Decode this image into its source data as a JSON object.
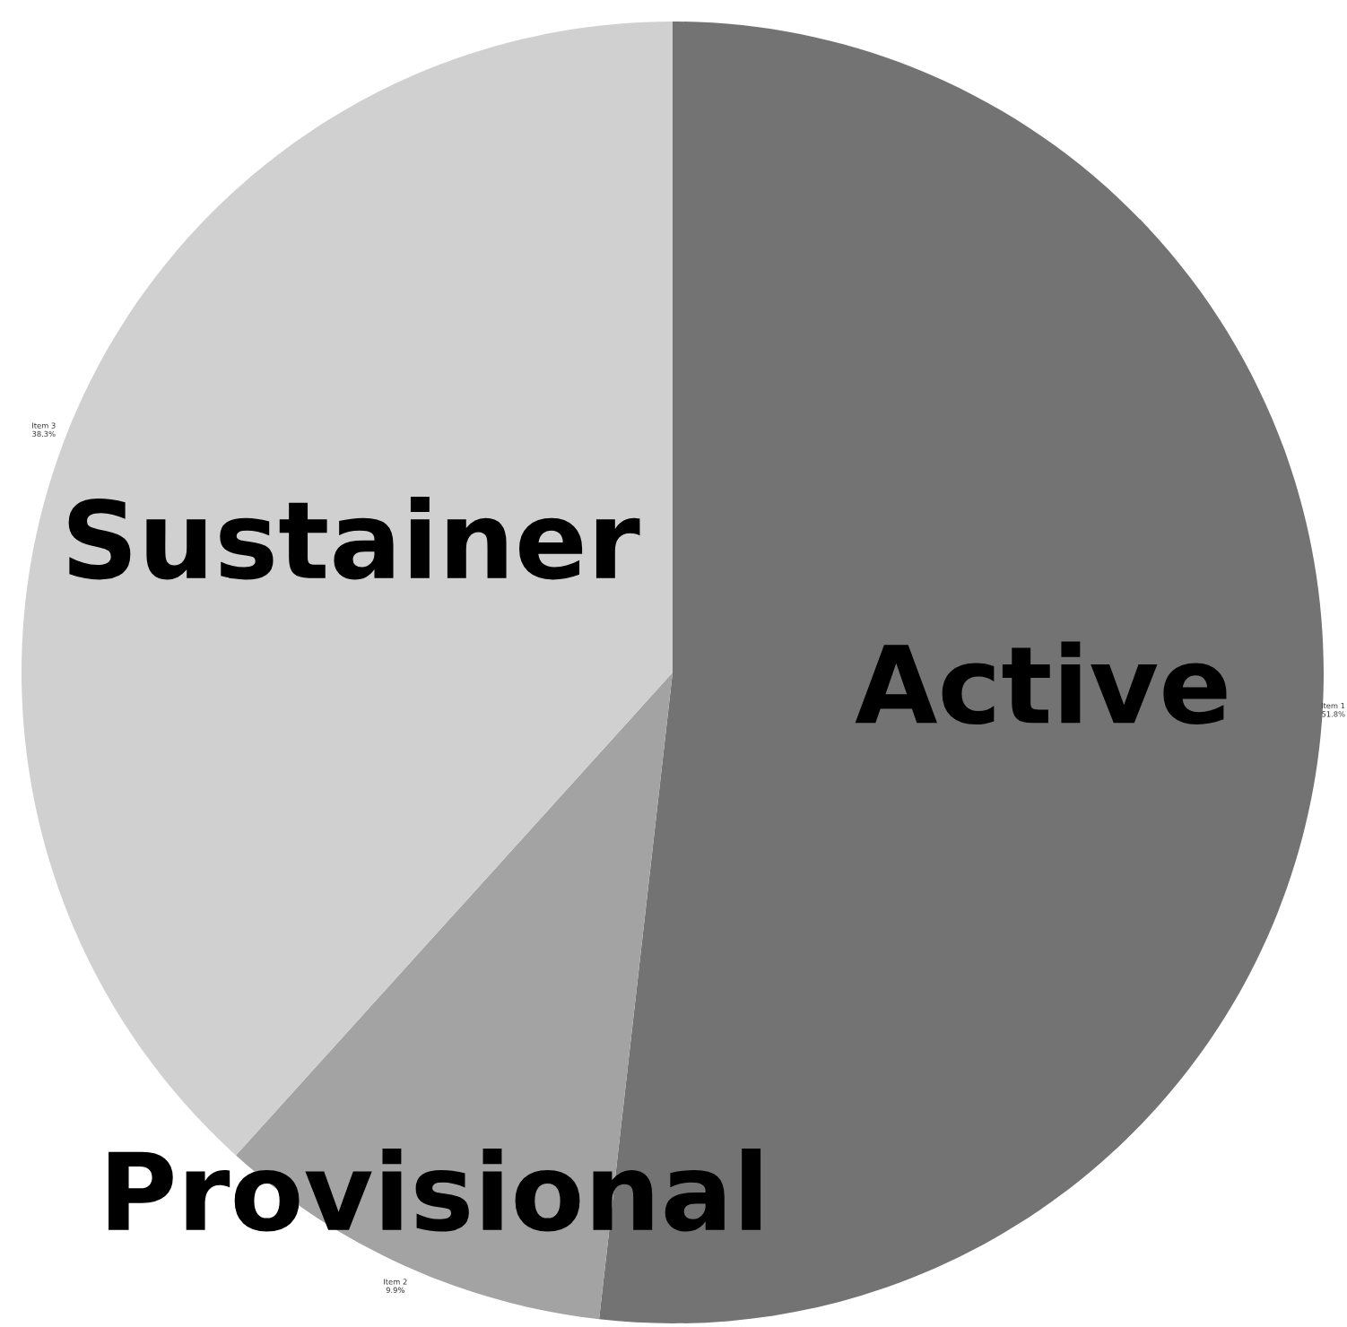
{
  "chart_data": {
    "type": "pie",
    "categories": [
      "Active",
      "Provisional",
      "Sustainer"
    ],
    "values": [
      51.8,
      9.9,
      38.3
    ],
    "colors": [
      "#737373",
      "#a3a3a3",
      "#d0d0d0"
    ],
    "annotations": [
      "Item 1\n51.8%",
      "Item 2\n9.9%",
      "Item 3\n38.3%"
    ]
  }
}
